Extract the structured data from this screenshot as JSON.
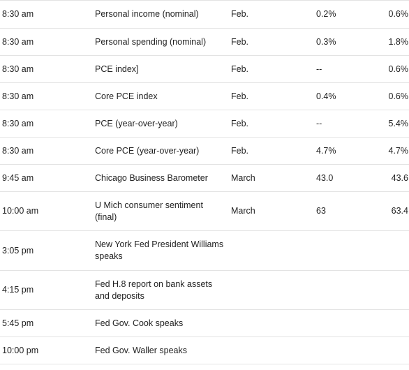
{
  "rows": [
    {
      "time": "8:30 am",
      "report": "Personal income (nominal)",
      "period": "Feb.",
      "actual": "0.2%",
      "previous": "0.6%"
    },
    {
      "time": "8:30 am",
      "report": "Personal spending (nominal)",
      "period": "Feb.",
      "actual": "0.3%",
      "previous": "1.8%"
    },
    {
      "time": "8:30 am",
      "report": "PCE index]",
      "period": "Feb.",
      "actual": "--",
      "previous": "0.6%"
    },
    {
      "time": "8:30 am",
      "report": "Core PCE index",
      "period": "Feb.",
      "actual": "0.4%",
      "previous": "0.6%"
    },
    {
      "time": "8:30 am",
      "report": "PCE (year-over-year)",
      "period": "Feb.",
      "actual": "--",
      "previous": "5.4%"
    },
    {
      "time": "8:30 am",
      "report": "Core PCE (year-over-year)",
      "period": "Feb.",
      "actual": "4.7%",
      "previous": "4.7%"
    },
    {
      "time": "9:45 am",
      "report": "Chicago Business Barometer",
      "period": "March",
      "actual": "43.0",
      "previous": "43.6"
    },
    {
      "time": "10:00 am",
      "report": "U Mich consumer sentiment (final)",
      "period": "March",
      "actual": "63",
      "previous": "63.4"
    },
    {
      "time": "3:05 pm",
      "report": "New York Fed President Williams speaks",
      "period": "",
      "actual": "",
      "previous": ""
    },
    {
      "time": "4:15 pm",
      "report": "Fed H.8 report on bank assets and deposits",
      "period": "",
      "actual": "",
      "previous": ""
    },
    {
      "time": "5:45 pm",
      "report": "Fed Gov. Cook speaks",
      "period": "",
      "actual": "",
      "previous": ""
    },
    {
      "time": "10:00 pm",
      "report": "Fed Gov. Waller speaks",
      "period": "",
      "actual": "",
      "previous": ""
    }
  ]
}
